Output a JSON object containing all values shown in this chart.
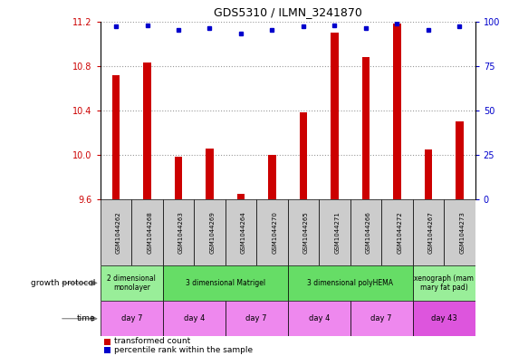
{
  "title": "GDS5310 / ILMN_3241870",
  "samples": [
    "GSM1044262",
    "GSM1044268",
    "GSM1044263",
    "GSM1044269",
    "GSM1044264",
    "GSM1044270",
    "GSM1044265",
    "GSM1044271",
    "GSM1044266",
    "GSM1044272",
    "GSM1044267",
    "GSM1044273"
  ],
  "red_values": [
    10.72,
    10.83,
    9.98,
    10.06,
    9.65,
    10.0,
    10.38,
    11.1,
    10.88,
    11.18,
    10.05,
    10.3
  ],
  "blue_values": [
    97,
    98,
    95,
    96,
    93,
    95,
    97,
    98,
    96,
    99,
    95,
    97
  ],
  "ylim_left": [
    9.6,
    11.2
  ],
  "ylim_right": [
    0,
    100
  ],
  "yticks_left": [
    9.6,
    10.0,
    10.4,
    10.8,
    11.2
  ],
  "yticks_right": [
    0,
    25,
    50,
    75,
    100
  ],
  "gp_groups": [
    {
      "label": "2 dimensional\nmonolayer",
      "start": 0,
      "end": 2,
      "color": "#99ee99"
    },
    {
      "label": "3 dimensional Matrigel",
      "start": 2,
      "end": 6,
      "color": "#66dd66"
    },
    {
      "label": "3 dimensional polyHEMA",
      "start": 6,
      "end": 10,
      "color": "#66dd66"
    },
    {
      "label": "xenograph (mam\nmary fat pad)",
      "start": 10,
      "end": 12,
      "color": "#99ee99"
    }
  ],
  "time_groups": [
    {
      "label": "day 7",
      "start": 0,
      "end": 2,
      "color": "#ee88ee"
    },
    {
      "label": "day 4",
      "start": 2,
      "end": 4,
      "color": "#ee88ee"
    },
    {
      "label": "day 7",
      "start": 4,
      "end": 6,
      "color": "#ee88ee"
    },
    {
      "label": "day 4",
      "start": 6,
      "end": 8,
      "color": "#ee88ee"
    },
    {
      "label": "day 7",
      "start": 8,
      "end": 10,
      "color": "#ee88ee"
    },
    {
      "label": "day 43",
      "start": 10,
      "end": 12,
      "color": "#dd55dd"
    }
  ],
  "bar_color": "#cc0000",
  "dot_color": "#0000cc",
  "grid_color": "#999999",
  "bg_color": "#ffffff",
  "label_color_red": "#cc0000",
  "label_color_blue": "#0000cc",
  "legend_red": "transformed count",
  "legend_blue": "percentile rank within the sample",
  "sample_box_color": "#cccccc",
  "gp_label_text": "growth protocol",
  "time_label_text": "time"
}
